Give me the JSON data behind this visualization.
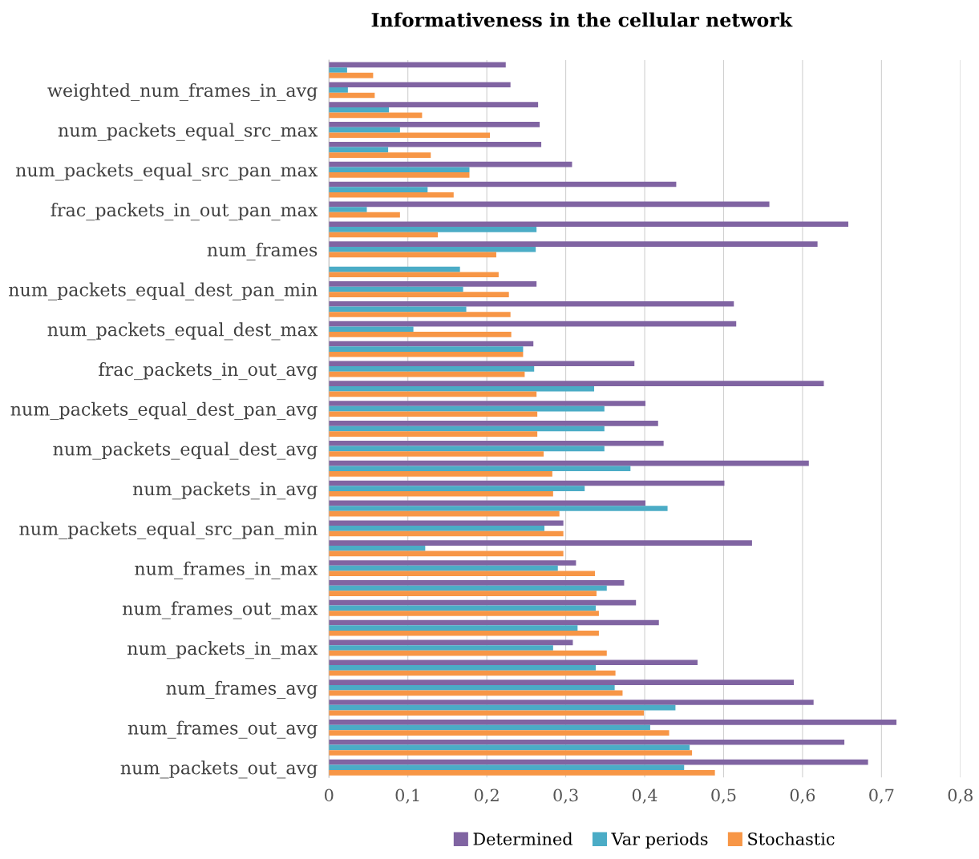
{
  "chart_data": {
    "type": "bar",
    "orientation": "horizontal",
    "title": "Informativeness in the cellular network",
    "categories": [
      null,
      "weighted_num_frames_in_avg",
      null,
      "num_packets_equal_src_max",
      null,
      "num_packets_equal_src_pan_max",
      null,
      "frac_packets_in_out_pan_max",
      null,
      "num_frames",
      null,
      "num_packets_equal_dest_pan_min",
      null,
      "num_packets_equal_dest_max",
      null,
      "frac_packets_in_out_avg",
      null,
      "num_packets_equal_dest_pan_avg",
      null,
      "num_packets_equal_dest_avg",
      null,
      "num_packets_in_avg",
      null,
      "num_packets_equal_src_pan_min",
      null,
      "num_frames_in_max",
      null,
      "num_frames_out_max",
      null,
      "num_packets_in_max",
      null,
      "num_frames_avg",
      null,
      "num_frames_out_avg",
      null,
      "num_packets_out_avg"
    ],
    "series": [
      {
        "name": "Determined",
        "color": "#8064a2",
        "values": [
          0.224,
          0.23,
          0.265,
          0.267,
          0.269,
          0.308,
          0.44,
          0.558,
          0.658,
          0.619,
          null,
          0.263,
          0.513,
          0.516,
          0.259,
          0.387,
          0.627,
          0.401,
          0.417,
          0.424,
          0.608,
          0.501,
          0.401,
          0.297,
          0.536,
          0.313,
          0.374,
          0.389,
          0.418,
          0.309,
          0.467,
          0.589,
          0.614,
          0.719,
          0.653,
          0.683
        ]
      },
      {
        "name": "Var periods",
        "color": "#4bacc6",
        "values": [
          0.023,
          0.024,
          0.076,
          0.09,
          0.075,
          0.178,
          0.125,
          0.048,
          0.263,
          0.262,
          0.166,
          0.17,
          0.174,
          0.107,
          0.246,
          0.26,
          0.336,
          0.349,
          0.349,
          0.349,
          0.382,
          0.324,
          0.429,
          0.273,
          0.122,
          0.29,
          0.352,
          0.338,
          0.315,
          0.284,
          0.338,
          0.362,
          0.439,
          0.407,
          0.457,
          0.45
        ]
      },
      {
        "name": "Stochastic",
        "color": "#f79646",
        "values": [
          0.056,
          0.058,
          0.118,
          0.204,
          0.129,
          0.178,
          0.158,
          0.09,
          0.138,
          0.212,
          0.215,
          0.228,
          0.23,
          0.231,
          0.246,
          0.248,
          0.263,
          0.264,
          0.264,
          0.272,
          0.283,
          0.284,
          0.292,
          0.297,
          0.297,
          0.337,
          0.339,
          0.342,
          0.342,
          0.352,
          0.363,
          0.372,
          0.399,
          0.431,
          0.46,
          0.489
        ]
      }
    ],
    "xlim": [
      0,
      0.8
    ],
    "xticks": [
      0,
      {
        "value": 0.1,
        "label": "0,1"
      },
      {
        "value": 0.2,
        "label": "0,2"
      },
      {
        "value": 0.3,
        "label": "0,3"
      },
      {
        "value": 0.4,
        "label": "0,4"
      },
      {
        "value": 0.5,
        "label": "0,5"
      },
      {
        "value": 0.6,
        "label": "0,6"
      },
      {
        "value": 0.7,
        "label": "0,7"
      },
      {
        "value": 0.8,
        "label": "0,8"
      }
    ],
    "grid": "x",
    "legend": "bottom"
  }
}
